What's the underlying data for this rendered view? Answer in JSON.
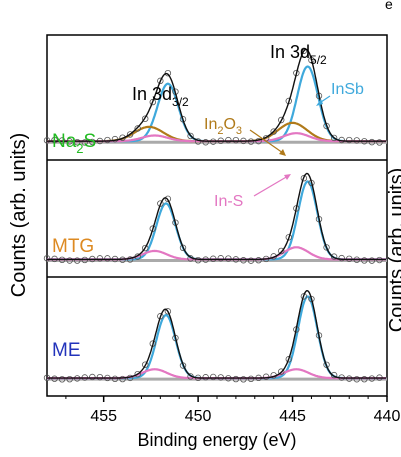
{
  "chart_data": {
    "type": "line",
    "xlabel": "Binding energy (eV)",
    "ylabel": "Counts (arb. units)",
    "xlim": [
      458,
      440
    ],
    "x_reversed": true,
    "xticks": [
      "455",
      "450",
      "445",
      "440"
    ],
    "xtick_values": [
      455,
      450,
      445,
      440
    ],
    "y_ticks_shown": false,
    "colors": {
      "measured": "#555555",
      "envelope": "#111111",
      "background": "#aaaaaa",
      "InSb": "#3fa9dc",
      "In2O3": "#b07a1a",
      "In-S": "#e377c2",
      "Na2S": "#22bb22",
      "MTG": "#dd8a22",
      "ME": "#2233bb"
    },
    "annotations": {
      "in3d32": {
        "base": "In 3d",
        "sub": "3/2"
      },
      "in3d52": {
        "base": "In 3d",
        "sub": "5/2"
      },
      "insb": "InSb",
      "in2o3": {
        "a": "In",
        "s1": "2",
        "b": "O",
        "s2": "3"
      },
      "ins": "In-S"
    },
    "panels": [
      {
        "label": {
          "a": "Na",
          "s": "2",
          "b": "S"
        },
        "color_key": "Na2S",
        "components": [
          {
            "name": "InSb",
            "peaks": [
              {
                "center": 451.6,
                "height": 1.0,
                "fwhm": 1.3
              },
              {
                "center": 444.2,
                "height": 1.3,
                "fwhm": 1.3
              }
            ]
          },
          {
            "name": "In2O3",
            "peaks": [
              {
                "center": 452.6,
                "height": 0.25,
                "fwhm": 1.8
              },
              {
                "center": 445.0,
                "height": 0.32,
                "fwhm": 1.8
              }
            ]
          },
          {
            "name": "In-S",
            "peaks": [
              {
                "center": 452.3,
                "height": 0.1,
                "fwhm": 1.6
              },
              {
                "center": 444.8,
                "height": 0.14,
                "fwhm": 1.6
              }
            ]
          }
        ]
      },
      {
        "label": {
          "a": "MTG"
        },
        "color_key": "MTG",
        "components": [
          {
            "name": "InSb",
            "peaks": [
              {
                "center": 451.7,
                "height": 0.92,
                "fwhm": 1.2
              },
              {
                "center": 444.2,
                "height": 1.28,
                "fwhm": 1.2
              }
            ]
          },
          {
            "name": "In-S",
            "peaks": [
              {
                "center": 452.3,
                "height": 0.14,
                "fwhm": 1.5
              },
              {
                "center": 444.8,
                "height": 0.2,
                "fwhm": 1.5
              }
            ]
          }
        ]
      },
      {
        "label": {
          "a": "ME"
        },
        "color_key": "ME",
        "components": [
          {
            "name": "InSb",
            "peaks": [
              {
                "center": 451.7,
                "height": 0.85,
                "fwhm": 1.2
              },
              {
                "center": 444.2,
                "height": 1.1,
                "fwhm": 1.2
              }
            ]
          },
          {
            "name": "In-S",
            "peaks": [
              {
                "center": 452.3,
                "height": 0.12,
                "fwhm": 1.5
              },
              {
                "center": 444.8,
                "height": 0.12,
                "fwhm": 1.5
              }
            ]
          }
        ]
      }
    ]
  }
}
